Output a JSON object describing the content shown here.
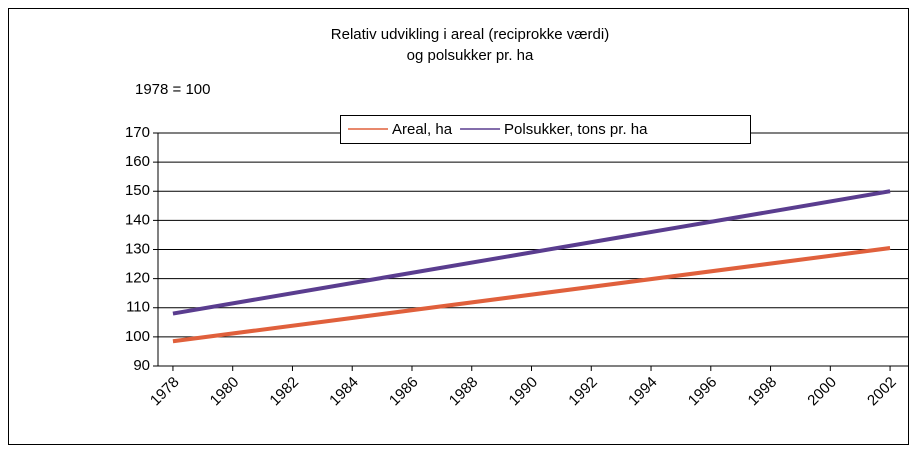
{
  "chart_data": {
    "type": "line",
    "title": "Relativ udvikling i areal (reciprokke værdi)",
    "subtitle": "og polsukker pr. ha",
    "annotation": "1978 = 100",
    "x": [
      1978,
      2002
    ],
    "series": [
      {
        "name": "Areal, ha",
        "color": "#e0603c",
        "values": [
          98.5,
          130.5
        ]
      },
      {
        "name": "Polsukker, tons pr. ha",
        "color": "#5a3d8f",
        "values": [
          108,
          150
        ]
      }
    ],
    "xlim": [
      1977.5,
      2002.6
    ],
    "xticks": [
      1978,
      1980,
      1982,
      1984,
      1986,
      1988,
      1990,
      1992,
      1994,
      1996,
      1998,
      2000,
      2002
    ],
    "ylim": [
      90,
      170
    ],
    "yticks": [
      90,
      100,
      110,
      120,
      130,
      140,
      150,
      160,
      170
    ],
    "grid": true,
    "legend": "top"
  }
}
